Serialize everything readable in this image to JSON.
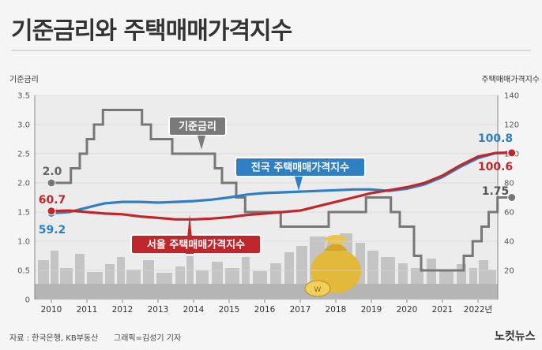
{
  "title": "기준금리와 주택매매가격지수",
  "source": "자료 : 한국은행, KB부동산",
  "credit": "그래픽=김성기 기자",
  "logo": "노컷뉴스",
  "chart_data": {
    "type": "line",
    "x": [
      2010,
      2011,
      2012,
      2013,
      2014,
      2015,
      2016,
      2017,
      2018,
      2019,
      2020,
      2021,
      "2022년"
    ],
    "xlim": [
      2010,
      2023.5
    ],
    "y_left": {
      "label": "기준금리",
      "ylim": [
        0,
        3.5
      ],
      "ticks": [
        0,
        0.5,
        1.0,
        1.5,
        2.0,
        2.5,
        3.0,
        3.5
      ],
      "tick_labels": [
        "0",
        "0.5",
        "1.0",
        "1.5",
        "2.0",
        "2.5",
        "3.0",
        "3.5"
      ]
    },
    "y_right": {
      "label": "주택매매가격지수",
      "ylim": [
        0,
        140
      ],
      "ticks": [
        20,
        40,
        60,
        80,
        100,
        120,
        140
      ],
      "tick_labels": [
        "20",
        "40",
        "60",
        "80",
        "100",
        "120",
        "140"
      ]
    },
    "series": [
      {
        "name": "기준금리",
        "axis": "left",
        "color": "#777777",
        "step": true,
        "x": [
          2010.0,
          2010.55,
          2010.8,
          2011.0,
          2011.2,
          2011.45,
          2012.0,
          2012.55,
          2012.8,
          2013.4,
          2014.6,
          2014.8,
          2015.2,
          2015.45,
          2016.45,
          2017.8,
          2018.85,
          2019.55,
          2019.8,
          2020.2,
          2020.4,
          2021.6,
          2021.85,
          2022.1,
          2022.3,
          2022.55,
          2022.85,
          2022.95
        ],
        "values": [
          2.0,
          2.25,
          2.5,
          2.75,
          3.0,
          3.25,
          3.25,
          3.0,
          2.75,
          2.5,
          2.25,
          2.0,
          1.75,
          1.5,
          1.25,
          1.5,
          1.75,
          1.5,
          1.25,
          0.75,
          0.5,
          0.75,
          1.0,
          1.25,
          1.5,
          1.75,
          1.75,
          1.75
        ]
      },
      {
        "name": "전국 주택매매가격지수",
        "axis": "right",
        "color": "#2f7fc4",
        "x": [
          2010.0,
          2010.5,
          2011.0,
          2011.5,
          2012.0,
          2012.5,
          2013.0,
          2013.5,
          2014.0,
          2014.5,
          2015.0,
          2015.5,
          2016.0,
          2016.5,
          2017.0,
          2017.5,
          2018.0,
          2018.5,
          2019.0,
          2019.5,
          2020.0,
          2020.5,
          2021.0,
          2021.5,
          2022.0,
          2022.5,
          2022.95
        ],
        "values": [
          59.2,
          60,
          63,
          66,
          67,
          67,
          66.5,
          67,
          67.5,
          68.5,
          70,
          72,
          73,
          73.5,
          74,
          74.5,
          75,
          75.5,
          75.5,
          74.5,
          76,
          79,
          84,
          91,
          97,
          100.5,
          100.8
        ]
      },
      {
        "name": "서울 주택매매가격지수",
        "axis": "right",
        "color": "#c0272d",
        "x": [
          2010.0,
          2010.5,
          2011.0,
          2011.5,
          2012.0,
          2012.5,
          2013.0,
          2013.5,
          2014.0,
          2014.5,
          2015.0,
          2015.5,
          2016.0,
          2016.5,
          2017.0,
          2017.5,
          2018.0,
          2018.5,
          2019.0,
          2019.5,
          2020.0,
          2020.5,
          2021.0,
          2021.5,
          2022.0,
          2022.5,
          2022.95
        ],
        "values": [
          60.7,
          61,
          60,
          59,
          58.5,
          57,
          56,
          55,
          55,
          55.5,
          56.5,
          58,
          59,
          60,
          61,
          64,
          67,
          70,
          73,
          75,
          77,
          80,
          85,
          92,
          98,
          100.5,
          100.6
        ]
      }
    ],
    "data_labels": [
      {
        "series": "기준금리",
        "text": "2.0"
      },
      {
        "series": "기준금리",
        "text": "1.75"
      },
      {
        "series": "전국 주택매매가격지수",
        "text": "59.2"
      },
      {
        "series": "전국 주택매매가격지수",
        "text": "100.8"
      },
      {
        "series": "서울 주택매매가격지수",
        "text": "60.7"
      },
      {
        "series": "서울 주택매매가격지수",
        "text": "100.6"
      }
    ],
    "grid": true,
    "legend": "inline callouts"
  }
}
